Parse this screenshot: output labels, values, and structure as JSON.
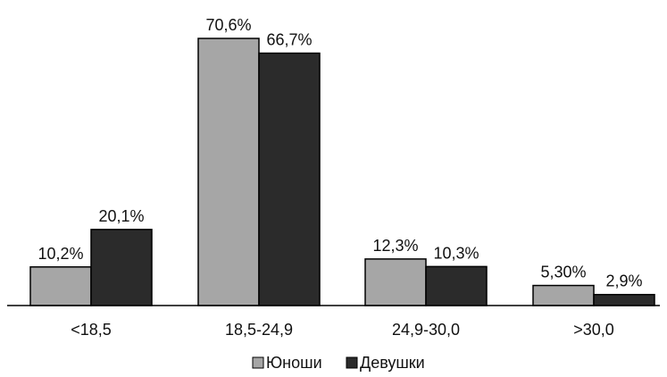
{
  "chart_data": {
    "type": "bar",
    "categories": [
      "<18,5",
      "18,5-24,9",
      "24,9-30,0",
      ">30,0"
    ],
    "series": [
      {
        "name": "Юноши",
        "values": [
          10.2,
          70.6,
          12.3,
          5.3
        ],
        "labels": [
          "10,2%",
          "70,6%",
          "12,3%",
          "5,30%"
        ],
        "color": "#a6a6a6"
      },
      {
        "name": "Девушки",
        "values": [
          20.1,
          66.7,
          10.3,
          2.9
        ],
        "labels": [
          "20,1%",
          "66,7%",
          "10,3%",
          "2,9%"
        ],
        "color": "#2b2b2b"
      }
    ],
    "ylim": [
      0,
      70.6
    ],
    "grid": false,
    "legend_position": "bottom-center"
  }
}
